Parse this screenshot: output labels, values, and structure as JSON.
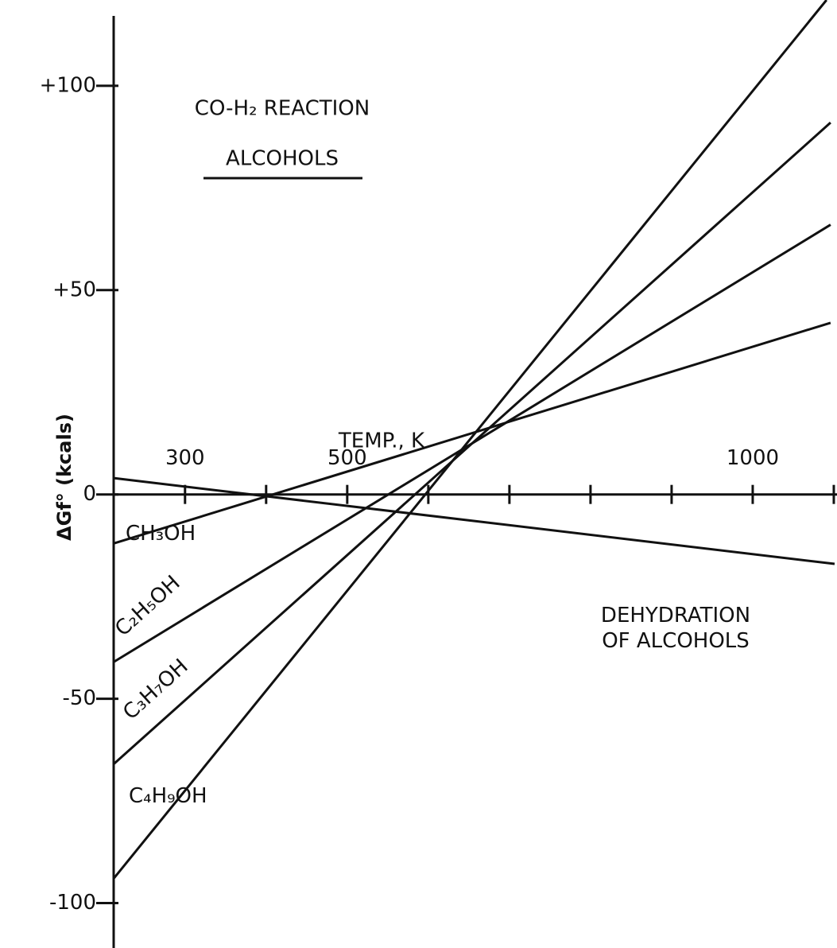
{
  "chart_data": {
    "type": "line",
    "title": "CO-H₂ REACTION",
    "subtitle": "ALCOHOLS",
    "x_label": "TEMP., K",
    "y_label": "ΔGf° (kcals)",
    "xlim": [
      212,
      1101
    ],
    "ylim": [
      -111,
      121
    ],
    "xticks": [
      300,
      {
        "value": 400,
        "label": null
      },
      500,
      {
        "value": 600,
        "label": null
      },
      {
        "value": 700,
        "label": null
      },
      {
        "value": 800,
        "label": null
      },
      {
        "value": 900,
        "label": null
      },
      1000,
      {
        "value": 1100,
        "label": null
      }
    ],
    "yticks": [
      {
        "value": 100,
        "label": "+100"
      },
      {
        "value": 50,
        "label": "+50"
      },
      0,
      -50,
      -100
    ],
    "color": "#111111",
    "series": [
      {
        "name": "CH₃OH",
        "x": [
          212,
          1096
        ],
        "values": [
          -12,
          42
        ]
      },
      {
        "name": "C₂H₅OH",
        "x": [
          212,
          1096
        ],
        "values": [
          -41,
          66
        ]
      },
      {
        "name": "C₃H₇OH",
        "x": [
          212,
          1096
        ],
        "values": [
          -66,
          91
        ]
      },
      {
        "name": "C₄H₉OH",
        "x": [
          212,
          1091
        ],
        "values": [
          -94,
          121
        ]
      },
      {
        "name": "DEHYDRATION OF ALCOHOLS",
        "x": [
          212,
          1101
        ],
        "values": [
          4,
          -17
        ]
      }
    ]
  }
}
